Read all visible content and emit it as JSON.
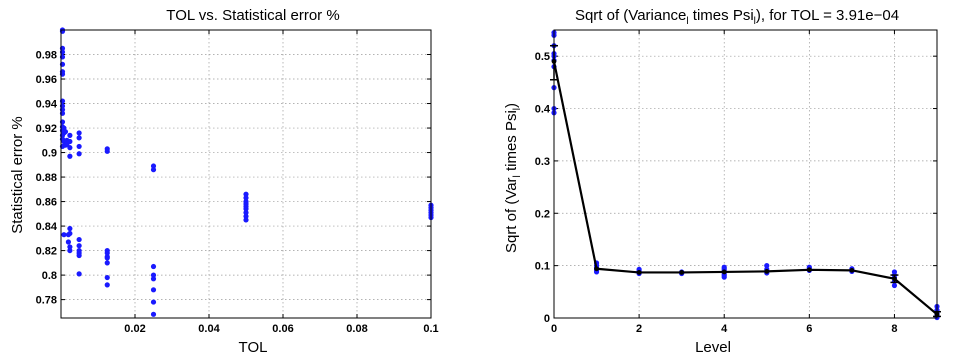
{
  "chart_data": [
    {
      "type": "scatter",
      "title": "TOL vs. Statistical error %",
      "xlabel": "TOL",
      "ylabel": "Statistical error %",
      "xlim": [
        0,
        0.1
      ],
      "ylim": [
        0.765,
        1.0
      ],
      "x_ticks": [
        0.02,
        0.04,
        0.06,
        0.08,
        0.1
      ],
      "y_ticks": [
        0.78,
        0.8,
        0.82,
        0.84,
        0.86,
        0.88,
        0.9,
        0.92,
        0.94,
        0.96,
        0.98
      ],
      "grid": true,
      "marker_color": "#1a1aff",
      "points": [
        [
          0.0004,
          1.0
        ],
        [
          0.0004,
          0.999
        ],
        [
          0.0004,
          0.985
        ],
        [
          0.0004,
          0.982
        ],
        [
          0.0004,
          0.978
        ],
        [
          0.0004,
          0.972
        ],
        [
          0.0004,
          0.966
        ],
        [
          0.0004,
          0.964
        ],
        [
          0.0004,
          0.942
        ],
        [
          0.0004,
          0.938
        ],
        [
          0.0004,
          0.935
        ],
        [
          0.0004,
          0.932
        ],
        [
          0.0004,
          0.925
        ],
        [
          0.0004,
          0.921
        ],
        [
          0.0004,
          0.918
        ],
        [
          0.0004,
          0.914
        ],
        [
          0.0004,
          0.911
        ],
        [
          0.0004,
          0.905
        ],
        [
          0.0008,
          0.92
        ],
        [
          0.0008,
          0.916
        ],
        [
          0.0008,
          0.909
        ],
        [
          0.0008,
          0.833
        ],
        [
          0.0012,
          0.917
        ],
        [
          0.0012,
          0.908
        ],
        [
          0.0012,
          0.906
        ],
        [
          0.0016,
          0.91
        ],
        [
          0.0016,
          0.907
        ],
        [
          0.002,
          0.833
        ],
        [
          0.002,
          0.827
        ],
        [
          0.0024,
          0.914
        ],
        [
          0.0024,
          0.909
        ],
        [
          0.0024,
          0.904
        ],
        [
          0.0024,
          0.897
        ],
        [
          0.0024,
          0.838
        ],
        [
          0.0024,
          0.834
        ],
        [
          0.0024,
          0.823
        ],
        [
          0.0024,
          0.82
        ],
        [
          0.0049,
          0.916
        ],
        [
          0.0049,
          0.912
        ],
        [
          0.0049,
          0.905
        ],
        [
          0.0049,
          0.899
        ],
        [
          0.0049,
          0.829
        ],
        [
          0.0049,
          0.824
        ],
        [
          0.0049,
          0.82
        ],
        [
          0.0049,
          0.818
        ],
        [
          0.0049,
          0.816
        ],
        [
          0.0049,
          0.801
        ],
        [
          0.0125,
          0.903
        ],
        [
          0.0125,
          0.901
        ],
        [
          0.0125,
          0.82
        ],
        [
          0.0125,
          0.818
        ],
        [
          0.0125,
          0.815
        ],
        [
          0.0125,
          0.814
        ],
        [
          0.0125,
          0.81
        ],
        [
          0.0125,
          0.798
        ],
        [
          0.0125,
          0.792
        ],
        [
          0.025,
          0.889
        ],
        [
          0.025,
          0.886
        ],
        [
          0.025,
          0.807
        ],
        [
          0.025,
          0.8
        ],
        [
          0.025,
          0.797
        ],
        [
          0.025,
          0.788
        ],
        [
          0.025,
          0.778
        ],
        [
          0.025,
          0.768
        ],
        [
          0.05,
          0.866
        ],
        [
          0.05,
          0.863
        ],
        [
          0.05,
          0.86
        ],
        [
          0.05,
          0.858
        ],
        [
          0.05,
          0.856
        ],
        [
          0.05,
          0.854
        ],
        [
          0.05,
          0.851
        ],
        [
          0.05,
          0.848
        ],
        [
          0.05,
          0.845
        ],
        [
          0.1,
          0.857
        ],
        [
          0.1,
          0.855
        ],
        [
          0.1,
          0.853
        ],
        [
          0.1,
          0.851
        ],
        [
          0.1,
          0.849
        ],
        [
          0.1,
          0.847
        ]
      ]
    },
    {
      "type": "line",
      "title_main": "Sqrt of (Variance",
      "title_sub1": "l",
      "title_mid": " times Psi",
      "title_sub2": "l",
      "title_end": "), for TOL = 3.91e−04",
      "xlabel": "Level",
      "ylabel_main": "Sqrt of (Var",
      "ylabel_sub1": "l",
      "ylabel_mid": " times Psi",
      "ylabel_sub2": "l",
      "ylabel_end": ")",
      "xlim": [
        0,
        9
      ],
      "ylim": [
        0,
        0.55
      ],
      "x_ticks": [
        0,
        2,
        4,
        6,
        8
      ],
      "y_ticks": [
        0,
        0.1,
        0.2,
        0.3,
        0.4,
        0.5
      ],
      "grid": true,
      "line_color": "#000000",
      "marker_color": "#1a1aff",
      "mean_line": {
        "x": [
          0,
          1,
          2,
          3,
          4,
          5,
          6,
          7,
          8,
          9
        ],
        "y": [
          0.49,
          0.094,
          0.087,
          0.087,
          0.088,
          0.089,
          0.092,
          0.091,
          0.075,
          0.007
        ]
      },
      "error_bars": [
        {
          "x": 0,
          "low": 0.455,
          "high": 0.52
        },
        {
          "x": 8,
          "low": 0.068,
          "high": 0.082
        },
        {
          "x": 9,
          "low": 0.003,
          "high": 0.012
        }
      ],
      "points": [
        [
          0,
          0.545
        ],
        [
          0,
          0.54
        ],
        [
          0,
          0.52
        ],
        [
          0,
          0.505
        ],
        [
          0,
          0.5
        ],
        [
          0,
          0.492
        ],
        [
          0,
          0.48
        ],
        [
          0,
          0.44
        ],
        [
          0,
          0.4
        ],
        [
          0,
          0.392
        ],
        [
          1,
          0.105
        ],
        [
          1,
          0.1
        ],
        [
          1,
          0.096
        ],
        [
          1,
          0.092
        ],
        [
          1,
          0.088
        ],
        [
          2,
          0.093
        ],
        [
          2,
          0.09
        ],
        [
          2,
          0.087
        ],
        [
          2,
          0.085
        ],
        [
          3,
          0.088
        ],
        [
          3,
          0.086
        ],
        [
          3,
          0.085
        ],
        [
          4,
          0.097
        ],
        [
          4,
          0.094
        ],
        [
          4,
          0.091
        ],
        [
          4,
          0.088
        ],
        [
          4,
          0.084
        ],
        [
          4,
          0.081
        ],
        [
          4,
          0.078
        ],
        [
          5,
          0.1
        ],
        [
          5,
          0.093
        ],
        [
          5,
          0.089
        ],
        [
          5,
          0.086
        ],
        [
          6,
          0.097
        ],
        [
          6,
          0.094
        ],
        [
          6,
          0.091
        ],
        [
          7,
          0.094
        ],
        [
          7,
          0.091
        ],
        [
          7,
          0.089
        ],
        [
          8,
          0.088
        ],
        [
          8,
          0.082
        ],
        [
          8,
          0.077
        ],
        [
          8,
          0.07
        ],
        [
          8,
          0.062
        ],
        [
          9,
          0.022
        ],
        [
          9,
          0.015
        ],
        [
          9,
          0.009
        ],
        [
          9,
          0.005
        ],
        [
          9,
          0.001
        ]
      ]
    }
  ]
}
